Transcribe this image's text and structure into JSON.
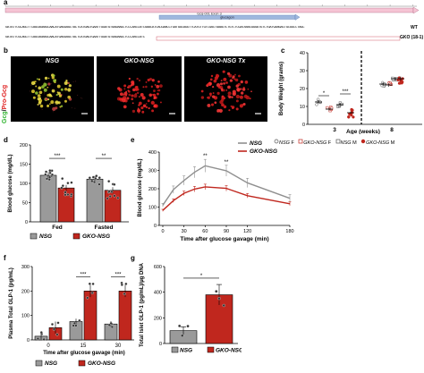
{
  "panel_a": {
    "letter": "a",
    "track_label": "Gcg-001 Exon 3",
    "feature_label": "glucagon",
    "seq_wt": "GATATTCGCAGCTTCAGCAGAAGCAACATGAGGAGCTACTCATGAGTGAATTGGATGTGAGAAGCTCCCAACCATCGAACATCACGAACCTGATGGCAGGTTCATGTTGTCGACTGAAGTCTGTCTCGATAAACGGGATGTCTGATGAAGACTGCGGCCTAGC",
    "seq_gko": "GATATTCGCAGCTTCAGCAGAAGCAACATGAGGAGCTACTCATGAGTGAATTGGATGTGAGAAGCTCCCAACCATC",
    "wt_label": "WT",
    "gko_label": "GKO (18-1)"
  },
  "panel_b": {
    "letter": "b",
    "titles": [
      "NSG",
      "GKO-NSG",
      "GKO-NSG Tx"
    ],
    "stain_gcg": "Gcg",
    "stain_sep": "/",
    "stain_progcg": "Pro-Gcg"
  },
  "panel_c": {
    "letter": "c",
    "legend": [
      {
        "genotype": "NSG",
        "sex": "F"
      },
      {
        "genotype": "GKO-NSG",
        "sex": "F"
      },
      {
        "genotype": "NSG",
        "sex": "M"
      },
      {
        "genotype": "GKO-NSG",
        "sex": "M"
      }
    ]
  },
  "panel_d": {
    "letter": "d"
  },
  "panel_e": {
    "letter": "e"
  },
  "panel_f": {
    "letter": "f"
  },
  "panel_g": {
    "letter": "g"
  },
  "colors": {
    "red": "#c0271e",
    "gray": "#9a9a9a",
    "pink": "#f5c4d4",
    "blue": "#9fb8de"
  },
  "chart_data": [
    {
      "panel": "c",
      "type": "scatter",
      "xlabel": "Age (weeks)",
      "ylabel": "Body Weight (grams)",
      "categories": [
        "3",
        "8"
      ],
      "ylim": [
        0,
        40
      ],
      "yticks": [
        0,
        10,
        20,
        30,
        40
      ],
      "series": [
        {
          "name": "NSG F",
          "means": [
            12.5,
            22.5
          ],
          "sem": [
            1.0,
            1.0
          ]
        },
        {
          "name": "GKO-NSG F",
          "means": [
            8.5,
            22.0
          ],
          "sem": [
            0.8,
            1.0
          ]
        },
        {
          "name": "NSG M",
          "means": [
            11.0,
            25.5
          ],
          "sem": [
            1.0,
            1.0
          ]
        },
        {
          "name": "GKO-NSG M",
          "means": [
            6.5,
            25.5
          ],
          "sem": [
            0.6,
            1.2
          ]
        }
      ],
      "annotations": [
        "*",
        "***"
      ]
    },
    {
      "panel": "d",
      "type": "bar",
      "ylabel": "Blood glucose (mg/dL)",
      "categories": [
        "Fed",
        "Fasted"
      ],
      "ylim": [
        0,
        200
      ],
      "yticks": [
        0,
        50,
        100,
        150,
        200
      ],
      "series": [
        {
          "name": "NSG",
          "values": [
            121,
            111
          ]
        },
        {
          "name": "GKO-NSG",
          "values": [
            88,
            82
          ]
        }
      ],
      "annotations": [
        "***",
        "**"
      ]
    },
    {
      "panel": "e",
      "type": "line",
      "xlabel": "Time after glucose gavage (min)",
      "ylabel": "Blood glucose (mg/dL)",
      "x": [
        0,
        15,
        30,
        45,
        60,
        90,
        120,
        180
      ],
      "xlim": [
        0,
        180
      ],
      "xticks": [
        0,
        30,
        60,
        90,
        120,
        180
      ],
      "ylim": [
        0,
        400
      ],
      "yticks": [
        0,
        100,
        200,
        300,
        400
      ],
      "series": [
        {
          "name": "NSG",
          "values": [
            110,
            195,
            245,
            290,
            325,
            298,
            232,
            148
          ],
          "sem": [
            10,
            20,
            25,
            30,
            35,
            30,
            25,
            20
          ]
        },
        {
          "name": "GKO-NSG",
          "values": [
            82,
            135,
            175,
            198,
            210,
            202,
            162,
            118
          ],
          "sem": [
            6,
            10,
            12,
            15,
            15,
            15,
            12,
            10
          ]
        }
      ],
      "annotations": [
        {
          "x": 60,
          "text": "**"
        },
        {
          "x": 90,
          "text": "**"
        }
      ]
    },
    {
      "panel": "f",
      "type": "bar",
      "xlabel": "Time after glucose gavage (min)",
      "ylabel": "Plasma Total GLP-1 (pg/mL)",
      "categories": [
        "0",
        "15",
        "30"
      ],
      "ylim": [
        0,
        300
      ],
      "yticks": [
        0,
        100,
        200,
        300
      ],
      "series": [
        {
          "name": "NSG",
          "values": [
            15,
            75,
            65
          ]
        },
        {
          "name": "GKO-NSG",
          "values": [
            50,
            200,
            200
          ]
        }
      ],
      "annotations": [
        "***",
        "***"
      ]
    },
    {
      "panel": "g",
      "type": "bar",
      "ylabel": "Total Islet GLP-1 (pg/mL)/µg DNA",
      "categories": [
        "NSG",
        "GKO-NSG"
      ],
      "ylim": [
        0,
        600
      ],
      "yticks": [
        0,
        200,
        400,
        600
      ],
      "values": [
        100,
        380
      ],
      "sem": [
        30,
        80
      ],
      "annotations": [
        "*"
      ]
    }
  ]
}
